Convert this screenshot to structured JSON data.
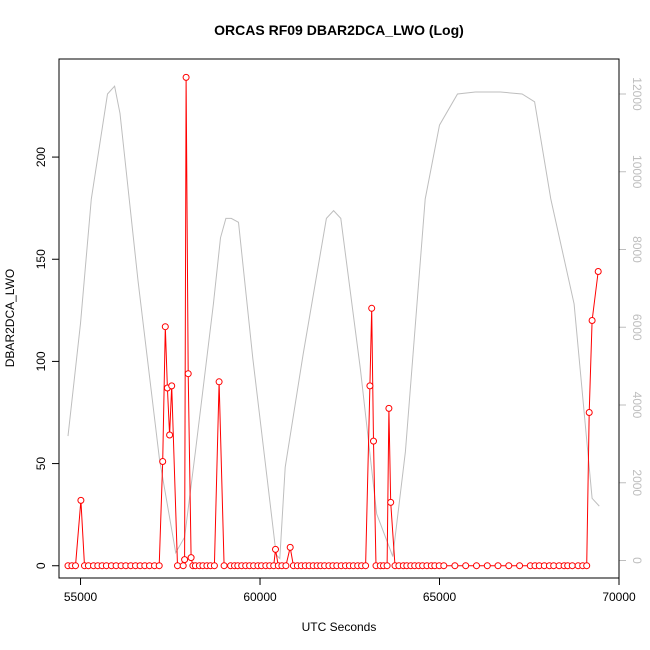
{
  "chart_data": {
    "type": "line",
    "title": "ORCAS RF09 DBAR2DCA_LWO (Log)",
    "xlabel": "UTC Seconds",
    "ylabel": "DBAR2DCA_LWO",
    "xlim": [
      54400,
      70000
    ],
    "ylim": [
      -6,
      248
    ],
    "y2lim": [
      -450,
      12900
    ],
    "x_ticks": [
      55000,
      60000,
      65000,
      70000
    ],
    "x_tick_labels": [
      "55000",
      "60000",
      "65000",
      "70000"
    ],
    "y_ticks": [
      0,
      50,
      100,
      150,
      200
    ],
    "y_tick_labels": [
      "0",
      "50",
      "100",
      "150",
      "200"
    ],
    "y2_ticks": [
      0,
      2000,
      4000,
      6000,
      8000,
      10000,
      12000
    ],
    "y2_tick_labels": [
      "0",
      "2000",
      "4000",
      "6000",
      "8000",
      "10000",
      "12000"
    ],
    "grid": false,
    "colors": {
      "primary": "#ff0000",
      "secondary": "#bebebe",
      "axis": "#000000",
      "secondary_axis": "#bebebe"
    },
    "series": [
      {
        "axis": "left",
        "color": "#ff0000",
        "style": "line+points",
        "points": [
          [
            54650,
            0
          ],
          [
            54760,
            0
          ],
          [
            54860,
            0
          ],
          [
            55010,
            32
          ],
          [
            55110,
            0
          ],
          [
            55220,
            0
          ],
          [
            55360,
            0
          ],
          [
            55480,
            0
          ],
          [
            55600,
            0
          ],
          [
            55720,
            0
          ],
          [
            55860,
            0
          ],
          [
            55990,
            0
          ],
          [
            56130,
            0
          ],
          [
            56260,
            0
          ],
          [
            56400,
            0
          ],
          [
            56530,
            0
          ],
          [
            56660,
            0
          ],
          [
            56790,
            0
          ],
          [
            56920,
            0
          ],
          [
            57060,
            0
          ],
          [
            57190,
            0
          ],
          [
            57290,
            51
          ],
          [
            57360,
            117
          ],
          [
            57420,
            87
          ],
          [
            57480,
            64
          ],
          [
            57540,
            88
          ],
          [
            57700,
            0
          ],
          [
            57860,
            0
          ],
          [
            57900,
            3
          ],
          [
            57940,
            239
          ],
          [
            58000,
            94
          ],
          [
            58080,
            4
          ],
          [
            58130,
            0
          ],
          [
            58200,
            0
          ],
          [
            58310,
            0
          ],
          [
            58410,
            0
          ],
          [
            58520,
            0
          ],
          [
            58620,
            0
          ],
          [
            58730,
            0
          ],
          [
            58860,
            90
          ],
          [
            59000,
            0
          ],
          [
            59180,
            0
          ],
          [
            59290,
            0
          ],
          [
            59380,
            0
          ],
          [
            59490,
            0
          ],
          [
            59600,
            0
          ],
          [
            59710,
            0
          ],
          [
            59820,
            0
          ],
          [
            59940,
            0
          ],
          [
            60040,
            0
          ],
          [
            60160,
            0
          ],
          [
            60270,
            0
          ],
          [
            60380,
            0
          ],
          [
            60430,
            8
          ],
          [
            60510,
            0
          ],
          [
            60610,
            0
          ],
          [
            60720,
            0
          ],
          [
            60840,
            9
          ],
          [
            60930,
            0
          ],
          [
            61040,
            0
          ],
          [
            61150,
            0
          ],
          [
            61260,
            0
          ],
          [
            61370,
            0
          ],
          [
            61480,
            0
          ],
          [
            61590,
            0
          ],
          [
            61690,
            0
          ],
          [
            61800,
            0
          ],
          [
            61920,
            0
          ],
          [
            62030,
            0
          ],
          [
            62140,
            0
          ],
          [
            62260,
            0
          ],
          [
            62380,
            0
          ],
          [
            62490,
            0
          ],
          [
            62600,
            0
          ],
          [
            62720,
            0
          ],
          [
            62830,
            0
          ],
          [
            62940,
            0
          ],
          [
            63060,
            88
          ],
          [
            63110,
            126
          ],
          [
            63160,
            61
          ],
          [
            63230,
            0
          ],
          [
            63350,
            0
          ],
          [
            63440,
            0
          ],
          [
            63540,
            0
          ],
          [
            63590,
            77
          ],
          [
            63640,
            31
          ],
          [
            63760,
            0
          ],
          [
            63870,
            0
          ],
          [
            63990,
            0
          ],
          [
            64090,
            0
          ],
          [
            64200,
            0
          ],
          [
            64310,
            0
          ],
          [
            64420,
            0
          ],
          [
            64530,
            0
          ],
          [
            64650,
            0
          ],
          [
            64770,
            0
          ],
          [
            64870,
            0
          ],
          [
            64990,
            0
          ],
          [
            65120,
            0
          ],
          [
            65430,
            0
          ],
          [
            65730,
            0
          ],
          [
            66030,
            0
          ],
          [
            66330,
            0
          ],
          [
            66630,
            0
          ],
          [
            66930,
            0
          ],
          [
            67230,
            0
          ],
          [
            67530,
            0
          ],
          [
            67660,
            0
          ],
          [
            67780,
            0
          ],
          [
            67920,
            0
          ],
          [
            68060,
            0
          ],
          [
            68180,
            0
          ],
          [
            68330,
            0
          ],
          [
            68470,
            0
          ],
          [
            68570,
            0
          ],
          [
            68700,
            0
          ],
          [
            68860,
            0
          ],
          [
            68990,
            0
          ],
          [
            69100,
            0
          ],
          [
            69170,
            75
          ],
          [
            69250,
            120
          ],
          [
            69420,
            144
          ]
        ]
      },
      {
        "axis": "right",
        "color": "#bebebe",
        "style": "line",
        "points": [
          [
            54650,
            3200
          ],
          [
            55000,
            6100
          ],
          [
            55300,
            9300
          ],
          [
            55750,
            12000
          ],
          [
            55950,
            12200
          ],
          [
            56100,
            11500
          ],
          [
            56600,
            7200
          ],
          [
            57200,
            2600
          ],
          [
            57650,
            200
          ],
          [
            57900,
            600
          ],
          [
            58200,
            2800
          ],
          [
            58700,
            6600
          ],
          [
            58900,
            8300
          ],
          [
            59050,
            8800
          ],
          [
            59200,
            8800
          ],
          [
            59400,
            8700
          ],
          [
            59800,
            5200
          ],
          [
            60200,
            2100
          ],
          [
            60450,
            150
          ],
          [
            60550,
            50
          ],
          [
            60700,
            2400
          ],
          [
            61200,
            5300
          ],
          [
            61850,
            8800
          ],
          [
            62050,
            9000
          ],
          [
            62250,
            8800
          ],
          [
            62800,
            4900
          ],
          [
            63250,
            1200
          ],
          [
            63700,
            100
          ],
          [
            64050,
            2800
          ],
          [
            64600,
            9300
          ],
          [
            65000,
            11200
          ],
          [
            65500,
            12000
          ],
          [
            66000,
            12050
          ],
          [
            66700,
            12050
          ],
          [
            67300,
            12000
          ],
          [
            67650,
            11800
          ],
          [
            68100,
            9300
          ],
          [
            68750,
            6600
          ],
          [
            69250,
            1600
          ],
          [
            69450,
            1400
          ]
        ]
      }
    ]
  }
}
